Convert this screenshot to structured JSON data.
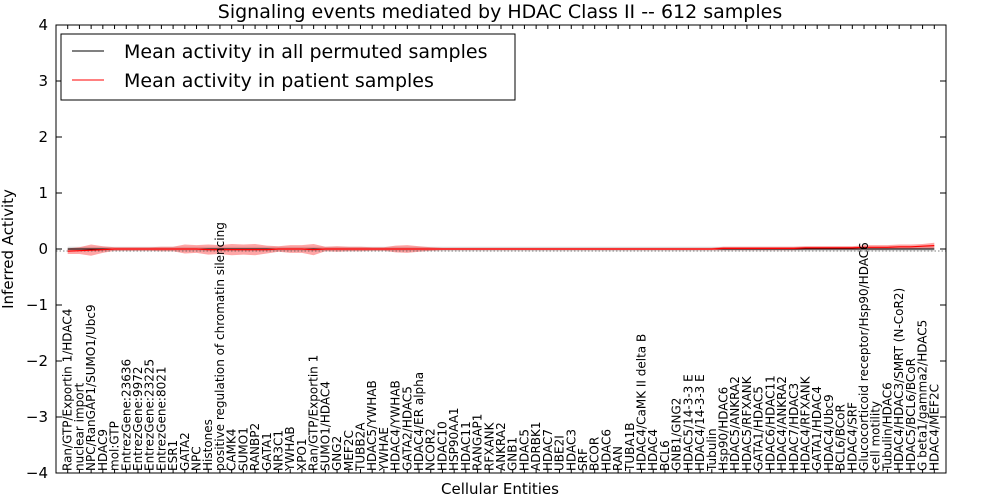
{
  "chart_data": {
    "type": "line",
    "title": "Signaling events mediated by HDAC Class II -- 612 samples",
    "xlabel": "Cellular Entities",
    "ylabel": "Inferred Activity",
    "ylim": [
      -4,
      4
    ],
    "yticks": [
      "4",
      "3",
      "2",
      "1",
      "0",
      "−1",
      "−2",
      "−3",
      "−4"
    ],
    "legend": {
      "position": "top-left",
      "entries": [
        {
          "label": "Mean activity in all permuted samples",
          "color": "#000000"
        },
        {
          "label": "Mean activity in patient samples",
          "color": "#ff0000"
        }
      ]
    },
    "categories": [
      "Ran/GTP/Exportin 1/HDAC4",
      "nuclear import",
      "NPC/RanGAP1/SUMO1/Ubc9",
      "HDAC9",
      "mol:GTP",
      "EntrezGene:23636",
      "EntrezGene:9972",
      "EntrezGene:23225",
      "EntrezGene:8021",
      "ESR1",
      "GATA2",
      "NPC",
      "Histones",
      "positive regulation of chromatin silencing",
      "CAMK4",
      "SUMO1",
      "RANBP2",
      "GATA1",
      "NR3C1",
      "YWHAB",
      "XPO1",
      "Ran/GTP/Exportin 1",
      "SUMO1/HDAC4",
      "GNG2",
      "MEF2C",
      "TUBB2A",
      "HDAC5/YWHAB",
      "YWHAE",
      "HDAC4/YWHAB",
      "GATA2/HDAC5",
      "HDAC4/ER alpha",
      "NCOR2",
      "HDAC10",
      "HSP90AA1",
      "HDAC11",
      "RANGAP1",
      "RFXANK",
      "ANKRA2",
      "GNB1",
      "HDAC5",
      "ADRBK1",
      "HDAC7",
      "UBE2I",
      "HDAC3",
      "SRF",
      "BCOR",
      "HDAC6",
      "RAN",
      "TUBA1B",
      "HDAC4/CaMK II delta B",
      "HDAC4",
      "BCL6",
      "GNB1/GNG2",
      "HDAC5/14-3-3 E",
      "HDAC4/14-3-3 E",
      "Tubulin",
      "Hsp90/HDAC6",
      "HDAC5/ANKRA2",
      "HDAC5/RFXANK",
      "GATA1/HDAC5",
      "HDAC6/HDAC11",
      "HDAC4/ANKRA2",
      "HDAC7/HDAC3",
      "HDAC4/RFXANK",
      "GATA1/HDAC4",
      "HDAC4/Ubc9",
      "BCL6/BCoR",
      "HDAC4/SRF",
      "Glucocorticoid receptor/Hsp90/HDAC6",
      "cell motility",
      "Tubulin/HDAC6",
      "HDAC4/HDAC3/SMRT (N-CoR2)",
      "HDAC5/BCL6/BCoR",
      "G beta1/gamma2/HDAC5",
      "HDAC4/MEF2C"
    ],
    "series": [
      {
        "name": "Mean activity in all permuted samples",
        "color": "#000000",
        "values": [
          0,
          0,
          0,
          0,
          0,
          0,
          0,
          0,
          0,
          0,
          0,
          0,
          0,
          0,
          0,
          0,
          0,
          0,
          0,
          0,
          0,
          0,
          0,
          0,
          0,
          0,
          0,
          0,
          0,
          0,
          0,
          0,
          0,
          0,
          0,
          0,
          0,
          0,
          0,
          0,
          0,
          0,
          0,
          0,
          0,
          0,
          0,
          0,
          0,
          0,
          0,
          0,
          0,
          0,
          0,
          0,
          0,
          0,
          0,
          0,
          0,
          0,
          0,
          0,
          0,
          0,
          0,
          0,
          0,
          0,
          0,
          0,
          0,
          0,
          0
        ],
        "band": 0.04
      },
      {
        "name": "Mean activity in patient samples",
        "color": "#ff0000",
        "values": [
          -0.04,
          -0.03,
          -0.02,
          -0.01,
          0,
          0,
          0,
          0,
          0,
          0,
          0,
          0,
          -0.01,
          -0.01,
          -0.01,
          -0.01,
          -0.01,
          -0.01,
          0,
          0,
          0,
          -0.01,
          0,
          0,
          0,
          0,
          0,
          0,
          0,
          0,
          0,
          0,
          0,
          0,
          0,
          0,
          0,
          0,
          0,
          0,
          0,
          0,
          0,
          0,
          0,
          0,
          0,
          0,
          0,
          0,
          0,
          0,
          0,
          0,
          0,
          0,
          0.01,
          0.01,
          0.01,
          0.01,
          0.01,
          0.01,
          0.01,
          0.02,
          0.02,
          0.02,
          0.02,
          0.02,
          0.03,
          0.03,
          0.03,
          0.04,
          0.04,
          0.05,
          0.06
        ],
        "spread": [
          0.05,
          0.06,
          0.1,
          0.06,
          0.03,
          0.03,
          0.03,
          0.03,
          0.04,
          0.04,
          0.08,
          0.07,
          0.09,
          0.08,
          0.1,
          0.09,
          0.1,
          0.07,
          0.05,
          0.07,
          0.07,
          0.1,
          0.04,
          0.05,
          0.04,
          0.04,
          0.03,
          0.03,
          0.06,
          0.07,
          0.05,
          0.03,
          0.02,
          0.02,
          0.02,
          0.02,
          0.02,
          0.02,
          0.02,
          0.02,
          0.02,
          0.02,
          0.02,
          0.02,
          0.02,
          0.02,
          0.02,
          0.02,
          0.02,
          0.02,
          0.02,
          0.02,
          0.02,
          0.02,
          0.02,
          0.02,
          0.03,
          0.03,
          0.03,
          0.03,
          0.03,
          0.03,
          0.03,
          0.03,
          0.03,
          0.03,
          0.03,
          0.03,
          0.04,
          0.04,
          0.04,
          0.04,
          0.04,
          0.04,
          0.05
        ]
      }
    ]
  }
}
